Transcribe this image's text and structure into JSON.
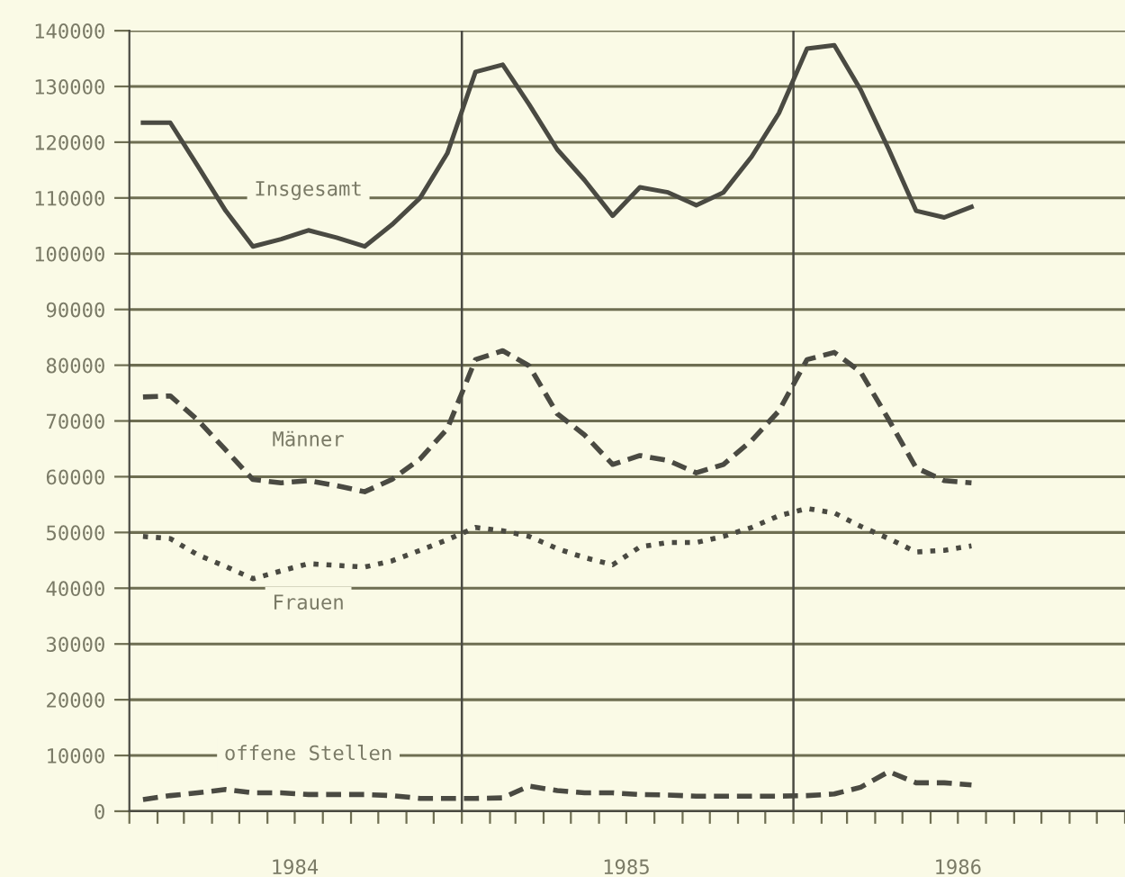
{
  "chart_data": {
    "type": "line",
    "x": [
      "1984-01-16",
      "1984-02-15",
      "1984-03-16",
      "1984-04-16",
      "1984-05-16",
      "1984-06-16",
      "1984-07-16",
      "1984-08-16",
      "1984-09-16",
      "1984-10-16",
      "1984-11-16",
      "1984-12-16",
      "1985-01-16",
      "1985-02-15",
      "1985-03-16",
      "1985-04-16",
      "1985-05-16",
      "1985-06-16",
      "1985-07-16",
      "1985-08-16",
      "1985-09-16",
      "1985-10-16",
      "1985-11-16",
      "1985-12-16",
      "1986-01-16",
      "1986-02-15",
      "1986-03-16",
      "1986-04-16",
      "1986-05-16",
      "1986-06-16",
      "1986-07-16"
    ],
    "series": [
      {
        "name": "Insgesamt",
        "color": "#4a4a42",
        "line_style": "solid",
        "values": [
          123500,
          123500,
          115800,
          107700,
          101300,
          102600,
          104200,
          102900,
          101300,
          105200,
          110000,
          118000,
          132600,
          133900,
          126800,
          118700,
          113200,
          106800,
          111900,
          111000,
          108700,
          111000,
          117400,
          125200,
          136800,
          137400,
          129400,
          118700,
          107700,
          106500,
          108400
        ]
      },
      {
        "name": "Männer",
        "color": "#4a4a42",
        "line_style": "dashed",
        "values": [
          74300,
          74500,
          70200,
          64800,
          59500,
          58900,
          59300,
          58400,
          57300,
          59500,
          63200,
          68600,
          81000,
          82600,
          79900,
          71300,
          67500,
          62200,
          63800,
          62900,
          60700,
          62200,
          66500,
          71800,
          81000,
          82300,
          78800,
          70200,
          61600,
          59300,
          58900
        ]
      },
      {
        "name": "Frauen",
        "color": "#4a4a42",
        "line_style": "dotted",
        "values": [
          49300,
          48900,
          46000,
          43900,
          41700,
          43100,
          44400,
          44100,
          43800,
          44900,
          46800,
          48700,
          50900,
          50300,
          49300,
          47100,
          45500,
          44200,
          47400,
          48200,
          48200,
          49300,
          50900,
          53000,
          54300,
          53500,
          51100,
          48900,
          46500,
          46800,
          47600
        ]
      },
      {
        "name": "offene Stellen",
        "color": "#4a4a42",
        "line_style": "dashed",
        "values": [
          2100,
          2800,
          3300,
          3900,
          3300,
          3300,
          3000,
          3000,
          3000,
          2800,
          2300,
          2300,
          2300,
          2400,
          4500,
          3700,
          3300,
          3300,
          3000,
          2900,
          2700,
          2700,
          2700,
          2700,
          2800,
          3100,
          4300,
          7100,
          5100,
          5100,
          4700
        ]
      }
    ],
    "xlim": [
      "1984-01-01",
      "1987-01-01"
    ],
    "xticks": [
      {
        "value": "1984-01-01",
        "label": null
      },
      {
        "value": "1984-02-01",
        "label": null
      },
      {
        "value": "1984-03-01",
        "label": null
      },
      {
        "value": "1984-04-01",
        "label": null
      },
      {
        "value": "1984-05-01",
        "label": null
      },
      {
        "value": "1984-06-01",
        "label": null
      },
      {
        "value": "1984-07-01",
        "label": "1984"
      },
      {
        "value": "1984-08-01",
        "label": null
      },
      {
        "value": "1984-09-01",
        "label": null
      },
      {
        "value": "1984-10-01",
        "label": null
      },
      {
        "value": "1984-11-01",
        "label": null
      },
      {
        "value": "1984-12-01",
        "label": null
      },
      {
        "value": "1985-01-01",
        "label": null
      },
      {
        "value": "1985-02-01",
        "label": null
      },
      {
        "value": "1985-03-01",
        "label": null
      },
      {
        "value": "1985-04-01",
        "label": null
      },
      {
        "value": "1985-05-01",
        "label": null
      },
      {
        "value": "1985-06-01",
        "label": null
      },
      {
        "value": "1985-07-01",
        "label": "1985"
      },
      {
        "value": "1985-08-01",
        "label": null
      },
      {
        "value": "1985-09-01",
        "label": null
      },
      {
        "value": "1985-10-01",
        "label": null
      },
      {
        "value": "1985-11-01",
        "label": null
      },
      {
        "value": "1985-12-01",
        "label": null
      },
      {
        "value": "1986-01-01",
        "label": null
      },
      {
        "value": "1986-02-01",
        "label": null
      },
      {
        "value": "1986-03-01",
        "label": null
      },
      {
        "value": "1986-04-01",
        "label": null
      },
      {
        "value": "1986-05-01",
        "label": null
      },
      {
        "value": "1986-06-01",
        "label": null
      },
      {
        "value": "1986-07-01",
        "label": "1986"
      },
      {
        "value": "1986-08-01",
        "label": null
      },
      {
        "value": "1986-09-01",
        "label": null
      },
      {
        "value": "1986-10-01",
        "label": null
      },
      {
        "value": "1986-11-01",
        "label": null
      },
      {
        "value": "1986-12-01",
        "label": null
      },
      {
        "value": "1987-01-01",
        "label": null
      }
    ],
    "ylim": [
      0,
      140000
    ],
    "yticks": [
      0,
      10000,
      20000,
      30000,
      40000,
      50000,
      60000,
      70000,
      80000,
      90000,
      100000,
      110000,
      120000,
      130000,
      140000
    ],
    "ref_lines": [
      {
        "axis": "x",
        "value": "1985-01-01",
        "label": null,
        "color": "#4a4a42"
      },
      {
        "axis": "x",
        "value": "1986-01-01",
        "label": null,
        "color": "#4a4a42"
      }
    ],
    "grid": "y",
    "legend": false,
    "marker": "none"
  }
}
